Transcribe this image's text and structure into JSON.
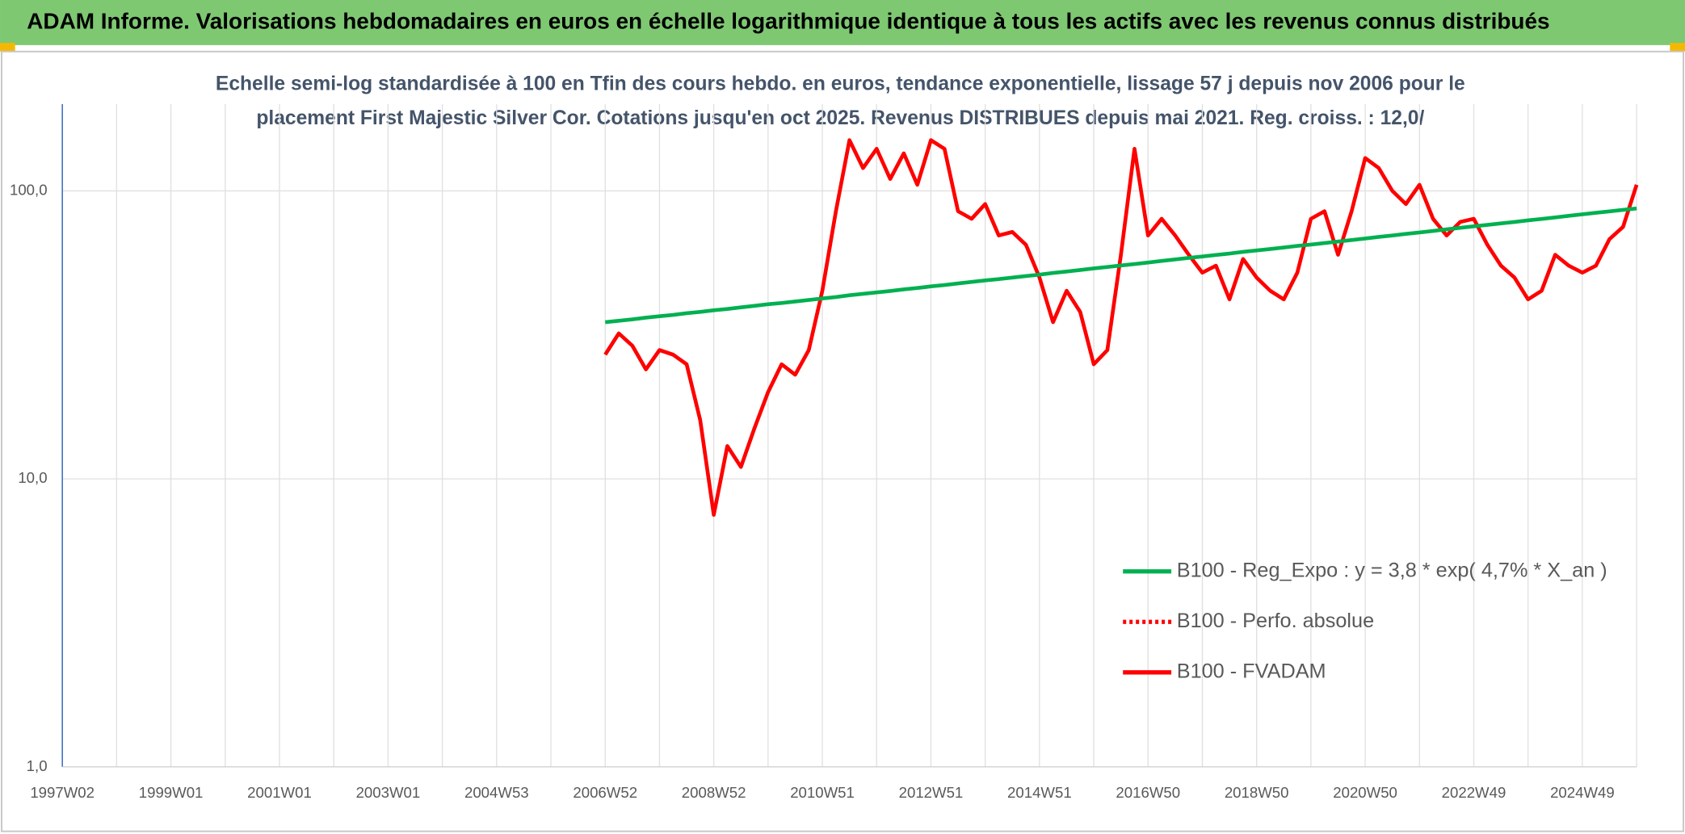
{
  "header": {
    "title": "ADAM Informe. Valorisations hebdomadaires en euros en échelle logarithmique identique à tous les actifs avec les revenus connus distribués"
  },
  "chart_data": {
    "type": "line",
    "subtitle": [
      "Echelle semi-log standardisée à 100 en Tfin des cours hebdo. en euros, tendance exponentielle, lissage 57 j depuis nov 2006 pour le",
      "placement First Majestic Silver Cor. Cotations jusqu'en oct 2025. Revenus DISTRIBUES depuis mai 2021. Reg. croiss. : 12,0/"
    ],
    "log_scale": true,
    "grid": true,
    "legend": "lower right",
    "ylim": [
      1,
      200
    ],
    "yticks": [
      {
        "value": 1,
        "label": "1,0"
      },
      {
        "value": 10,
        "label": "10,0"
      },
      {
        "value": 100,
        "label": "100,0"
      }
    ],
    "categories": [
      "1997W02",
      null,
      null,
      null,
      null,
      null,
      null,
      null,
      "1999W01",
      null,
      null,
      null,
      null,
      null,
      null,
      null,
      "2001W01",
      null,
      null,
      null,
      null,
      null,
      null,
      null,
      "2003W01",
      null,
      null,
      null,
      null,
      null,
      null,
      null,
      "2004W53",
      null,
      null,
      null,
      null,
      null,
      null,
      null,
      "2006W52",
      null,
      null,
      null,
      null,
      null,
      null,
      null,
      "2008W52",
      null,
      null,
      null,
      null,
      null,
      null,
      null,
      "2010W51",
      null,
      null,
      null,
      null,
      null,
      null,
      null,
      "2012W51",
      null,
      null,
      null,
      null,
      null,
      null,
      null,
      "2014W51",
      null,
      null,
      null,
      null,
      null,
      null,
      null,
      "2016W50",
      null,
      null,
      null,
      null,
      null,
      null,
      null,
      "2018W50",
      null,
      null,
      null,
      null,
      null,
      null,
      null,
      "2020W50",
      null,
      null,
      null,
      null,
      null,
      null,
      null,
      "2022W49",
      null,
      null,
      null,
      null,
      null,
      null,
      null,
      "2024W49",
      null,
      null,
      null,
      null
    ],
    "series": [
      {
        "name": "B100 - Reg_Expo : y = 3,8 * exp( 4,7% *  X_an )",
        "color": "#00b050",
        "dash": "solid",
        "values": [
          null,
          null,
          null,
          null,
          null,
          null,
          null,
          null,
          null,
          null,
          null,
          null,
          null,
          null,
          null,
          null,
          null,
          null,
          null,
          null,
          null,
          null,
          null,
          null,
          null,
          null,
          null,
          null,
          null,
          null,
          null,
          null,
          null,
          null,
          null,
          null,
          null,
          null,
          null,
          null,
          35.0,
          35.4,
          35.8,
          36.3,
          36.7,
          37.1,
          37.6,
          38.0,
          38.5,
          38.9,
          39.4,
          39.9,
          40.4,
          40.8,
          41.3,
          41.8,
          42.3,
          42.8,
          43.4,
          43.9,
          44.4,
          44.9,
          45.5,
          46.0,
          46.6,
          47.1,
          47.7,
          48.3,
          48.9,
          49.4,
          50.0,
          50.6,
          51.2,
          51.9,
          52.5,
          53.1,
          53.8,
          54.4,
          55.1,
          55.7,
          56.4,
          57.1,
          57.8,
          58.5,
          59.2,
          59.9,
          60.6,
          61.4,
          62.1,
          62.8,
          63.6,
          64.4,
          65.1,
          65.9,
          66.7,
          67.5,
          68.3,
          69.2,
          70.0,
          70.9,
          71.7,
          72.6,
          73.5,
          74.4,
          75.3,
          76.2,
          77.1,
          78.0,
          79.0,
          79.9,
          80.9,
          81.9,
          82.9,
          83.9,
          84.9,
          85.9,
          86.9
        ]
      },
      {
        "name": "B100 - Perfo. absolue",
        "color": "#ff0000",
        "dash": "dotted",
        "values": [
          null,
          null,
          null,
          null,
          null,
          null,
          null,
          null,
          null,
          null,
          null,
          null,
          null,
          null,
          null,
          null,
          null,
          null,
          null,
          null,
          null,
          null,
          null,
          null,
          null,
          null,
          null,
          null,
          null,
          null,
          null,
          null,
          null,
          null,
          null,
          null,
          null,
          null,
          null,
          null,
          null,
          null,
          null,
          null,
          null,
          null,
          null,
          null,
          null,
          null,
          null,
          null,
          null,
          null,
          null,
          null,
          null,
          null,
          null,
          null,
          null,
          null,
          null,
          null,
          null,
          null,
          null,
          null,
          null,
          null,
          null,
          null,
          null,
          null,
          null,
          null,
          null,
          null,
          null,
          null,
          null,
          null,
          null,
          null,
          null,
          null,
          null,
          null,
          null,
          null,
          null,
          null,
          null,
          null,
          null,
          null,
          null,
          null,
          null,
          null,
          null,
          null,
          null,
          null,
          null,
          null,
          null,
          null,
          null,
          null,
          null,
          null,
          null,
          null,
          null,
          null,
          null
        ]
      },
      {
        "name": "B100 - FVADAM",
        "color": "#ff0000",
        "dash": "solid",
        "values": [
          null,
          null,
          null,
          null,
          null,
          null,
          null,
          null,
          null,
          null,
          null,
          null,
          null,
          null,
          null,
          null,
          null,
          null,
          null,
          null,
          null,
          null,
          null,
          null,
          null,
          null,
          null,
          null,
          null,
          null,
          null,
          null,
          null,
          null,
          null,
          null,
          null,
          null,
          null,
          null,
          27,
          32,
          29,
          24,
          28,
          27,
          25,
          16,
          7.5,
          13,
          11,
          15,
          20,
          25,
          23,
          28,
          45,
          85,
          150,
          120,
          140,
          110,
          135,
          105,
          150,
          140,
          85,
          80,
          90,
          70,
          72,
          65,
          50,
          35,
          45,
          38,
          25,
          28,
          60,
          140,
          70,
          80,
          70,
          60,
          52,
          55,
          42,
          58,
          50,
          45,
          42,
          52,
          80,
          85,
          60,
          85,
          130,
          120,
          100,
          90,
          105,
          80,
          70,
          78,
          80,
          65,
          55,
          50,
          42,
          45,
          60,
          55,
          52,
          55,
          68,
          75,
          105
        ]
      }
    ]
  }
}
